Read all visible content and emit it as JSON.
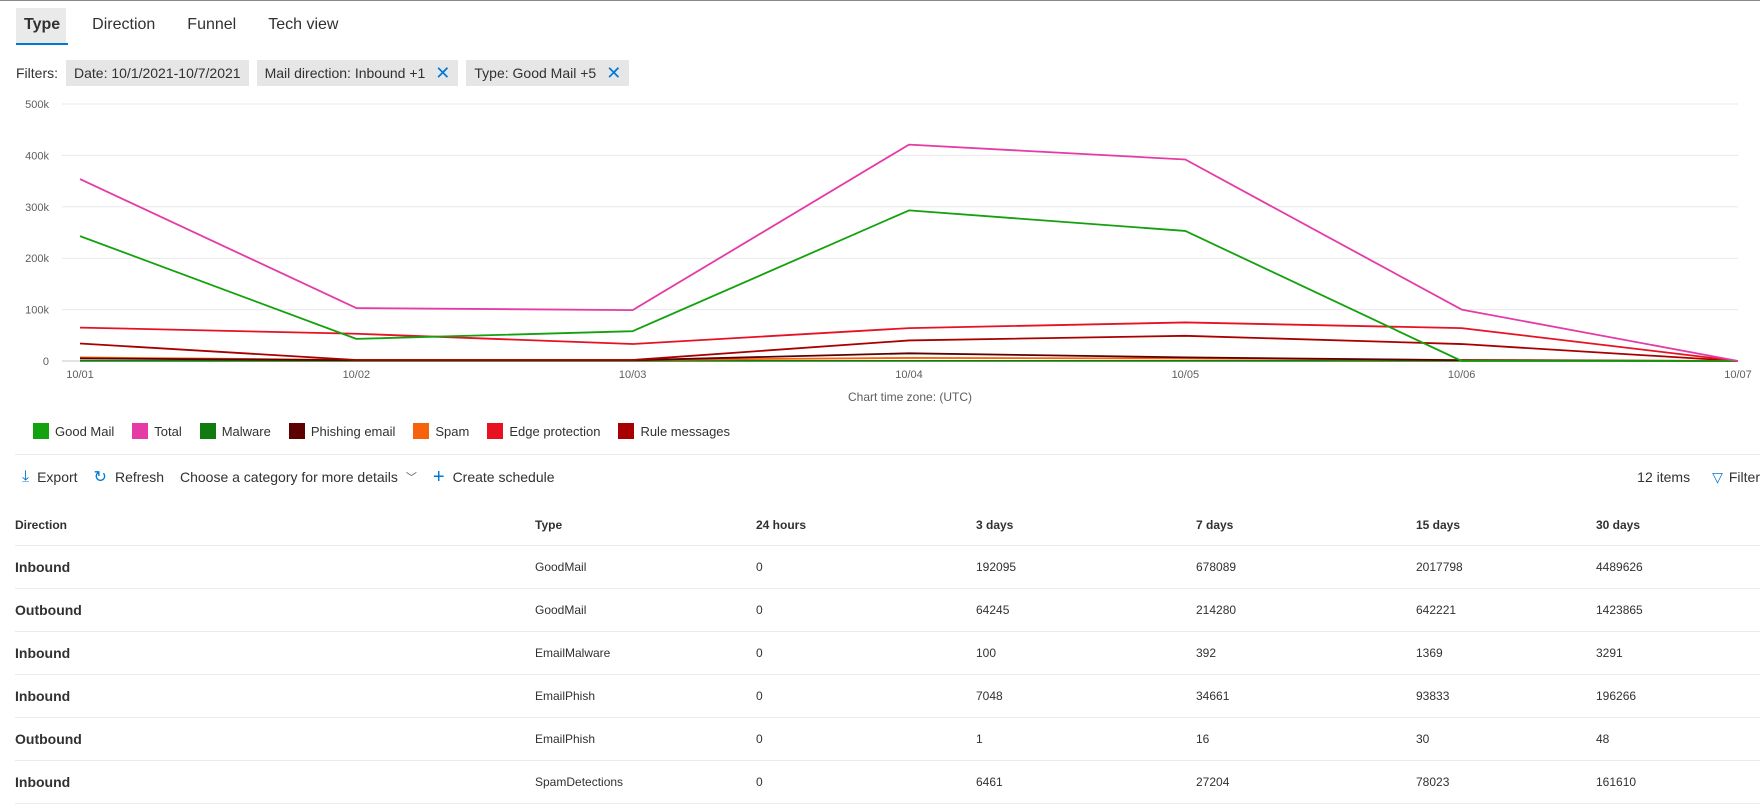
{
  "tabs": [
    {
      "label": "Type",
      "active": true
    },
    {
      "label": "Direction"
    },
    {
      "label": "Funnel"
    },
    {
      "label": "Tech view"
    }
  ],
  "filters": {
    "label": "Filters:",
    "chips": [
      {
        "text": "Date: 10/1/2021-10/7/2021",
        "removable": false
      },
      {
        "text": "Mail direction: Inbound +1",
        "removable": true
      },
      {
        "text": "Type: Good Mail +5",
        "removable": true
      }
    ]
  },
  "chart_data": {
    "type": "line",
    "x": [
      "10/01",
      "10/02",
      "10/03",
      "10/04",
      "10/05",
      "10/06",
      "10/07"
    ],
    "yticks": [
      "0",
      "100k",
      "200k",
      "300k",
      "400k",
      "500k"
    ],
    "ylim": [
      0,
      500000
    ],
    "xlabel": "Chart time zone: (UTC)",
    "grid": true,
    "legend_position": "bottom-left",
    "series": [
      {
        "name": "Good Mail",
        "color": "#13a10e",
        "values": [
          243000,
          43000,
          58000,
          293000,
          253000,
          0,
          0
        ]
      },
      {
        "name": "Total",
        "color": "#e43ba6",
        "values": [
          354000,
          103000,
          99000,
          421000,
          392000,
          100000,
          0
        ]
      },
      {
        "name": "Malware",
        "color": "#107c10",
        "values": [
          300,
          300,
          300,
          300,
          300,
          300,
          0
        ]
      },
      {
        "name": "Phishing email",
        "color": "#5c0000",
        "values": [
          5000,
          1500,
          1500,
          15000,
          7000,
          1500,
          0
        ]
      },
      {
        "name": "Spam",
        "color": "#f7630c",
        "values": [
          7000,
          2000,
          2000,
          6000,
          5000,
          2000,
          0
        ]
      },
      {
        "name": "Edge protection",
        "color": "#e81123",
        "values": [
          65000,
          53000,
          33000,
          64000,
          75000,
          64000,
          0
        ]
      },
      {
        "name": "Rule messages",
        "color": "#a80000",
        "values": [
          34000,
          2000,
          2000,
          40000,
          49000,
          33000,
          0
        ]
      }
    ]
  },
  "toolbar": {
    "export": "Export",
    "refresh": "Refresh",
    "category": "Choose a category for more details",
    "schedule": "Create schedule",
    "items": "12 items",
    "filter": "Filter"
  },
  "table": {
    "columns": [
      "Direction",
      "Type",
      "24 hours",
      "3 days",
      "7 days",
      "15 days",
      "30 days"
    ],
    "rows": [
      [
        "Inbound",
        "GoodMail",
        "0",
        "192095",
        "678089",
        "2017798",
        "4489626"
      ],
      [
        "Outbound",
        "GoodMail",
        "0",
        "64245",
        "214280",
        "642221",
        "1423865"
      ],
      [
        "Inbound",
        "EmailMalware",
        "0",
        "100",
        "392",
        "1369",
        "3291"
      ],
      [
        "Inbound",
        "EmailPhish",
        "0",
        "7048",
        "34661",
        "93833",
        "196266"
      ],
      [
        "Outbound",
        "EmailPhish",
        "0",
        "1",
        "16",
        "30",
        "48"
      ],
      [
        "Inbound",
        "SpamDetections",
        "0",
        "6461",
        "27204",
        "78023",
        "161610"
      ]
    ]
  }
}
